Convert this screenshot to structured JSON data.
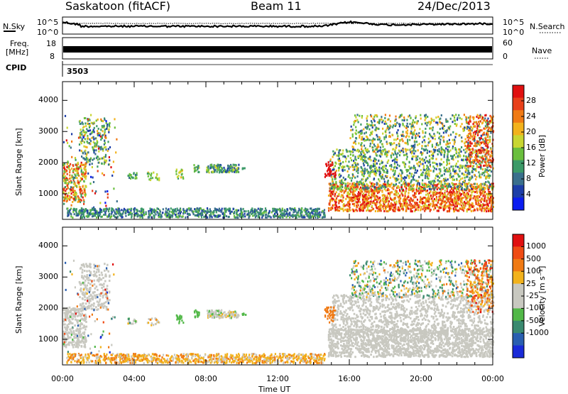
{
  "header": {
    "title": "Saskatoon (fitACF)",
    "beam": "Beam 11",
    "date": "24/Dec/2013"
  },
  "noise_panel": {
    "left_label": "N.Sky",
    "left_ticks": [
      "10^5",
      "10^0"
    ],
    "right_ticks": [
      "10^5",
      "10^0"
    ],
    "right_label": "N.Search"
  },
  "freq_panel": {
    "left_label_1": "Freq.",
    "left_label_2": "[MHz]",
    "left_ticks": [
      "18",
      "8"
    ],
    "right_ticks": [
      "60",
      "0"
    ],
    "right_label": "Nave"
  },
  "cpid": {
    "label": "CPID",
    "value": "3503"
  },
  "colors": {
    "power": [
      "#0b1cf0",
      "#1d3ea8",
      "#3a6f8c",
      "#3c9a68",
      "#6abf3e",
      "#c8d632",
      "#f2b21c",
      "#f07a14",
      "#e8401a",
      "#e01010"
    ],
    "velocity": [
      "#1a2bd8",
      "#2a5fb0",
      "#3a8a70",
      "#52b848",
      "#c8c8c0",
      "#c8c8c0",
      "#f2b21c",
      "#f07a14",
      "#ef4b14",
      "#e01010"
    ],
    "ground_scatter": "#c8c8c0"
  },
  "chart_data": [
    {
      "type": "heatmap",
      "name": "power",
      "ylabel": "Slant Range [km]",
      "ylim": [
        180,
        4600
      ],
      "yticks": [
        "1000",
        "2000",
        "3000",
        "4000"
      ],
      "ytick_values": [
        1000,
        2000,
        3000,
        4000
      ],
      "xlim": [
        0,
        24
      ],
      "colorbar": {
        "label": "Power [dB]",
        "range": [
          0,
          32
        ],
        "ticks": [
          "4",
          "8",
          "12",
          "16",
          "20",
          "24",
          "28"
        ],
        "tick_values": [
          4,
          8,
          12,
          16,
          20,
          24,
          28
        ]
      }
    },
    {
      "type": "heatmap",
      "name": "velocity",
      "ylabel": "Slant Range [km]",
      "ylim": [
        180,
        4600
      ],
      "yticks": [
        "1000",
        "2000",
        "3000",
        "4000"
      ],
      "ytick_values": [
        1000,
        2000,
        3000,
        4000
      ],
      "xlim": [
        0,
        24
      ],
      "xlabel": "Time UT",
      "xticks": [
        "00:00",
        "04:00",
        "08:00",
        "12:00",
        "16:00",
        "20:00",
        "00:00"
      ],
      "xtick_values": [
        0,
        4,
        8,
        12,
        16,
        20,
        24
      ],
      "colorbar": {
        "label": "Velocity [m s⁻¹]",
        "ticks": [
          "1000",
          "500",
          "100",
          "25",
          "-25",
          "-100",
          "-500",
          "-1000"
        ]
      }
    }
  ]
}
